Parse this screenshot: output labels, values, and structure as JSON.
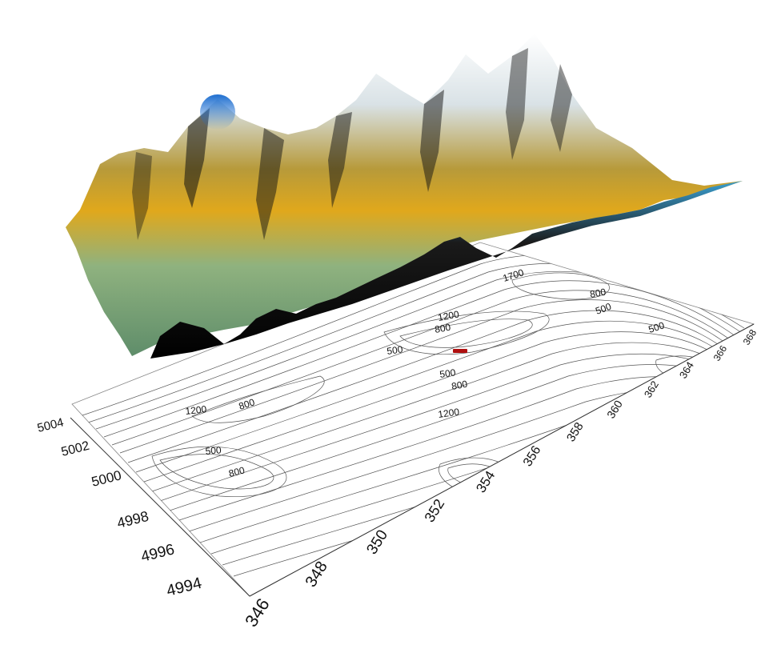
{
  "map": {
    "x_ticks": [
      "346",
      "348",
      "350",
      "352",
      "354",
      "356",
      "358",
      "360",
      "362",
      "364",
      "366",
      "368"
    ],
    "y_ticks": [
      "4994",
      "4996",
      "4998",
      "5000",
      "5002",
      "5004"
    ],
    "contour_labels": [
      "1700",
      "800",
      "500",
      "1200",
      "800",
      "500",
      "500",
      "500",
      "800",
      "1200",
      "1200",
      "800",
      "500",
      "800"
    ],
    "colors": {
      "base_plane": "#ffffff",
      "contour_line": "#555555",
      "marker": "#b01010",
      "terrain_low": "#7fae84",
      "terrain_mid": "#e0a81c",
      "terrain_high": "#f2f5f6",
      "terrain_shadow": "#111111",
      "terrain_peak_blue": "#1e6fd0"
    }
  }
}
